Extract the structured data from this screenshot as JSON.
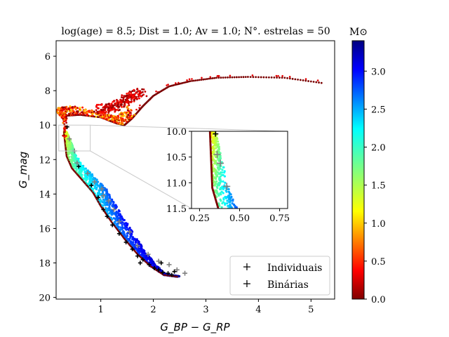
{
  "chart_data": {
    "type": "scatter",
    "title": "log(age) = 8.5; Dist = 1.0; Av = 1.0; N°. estrelas = 50",
    "xlabel": "G_BP − G_RP",
    "ylabel": "G_mag",
    "xlim": [
      0.15,
      5.45
    ],
    "ylim": [
      20.1,
      5.1
    ],
    "y_inverted": true,
    "xticks": [
      "1",
      "2",
      "3",
      "4",
      "5"
    ],
    "yticks": [
      "6",
      "8",
      "10",
      "12",
      "14",
      "16",
      "18",
      "20"
    ],
    "colorbar": {
      "label": "M⊙",
      "range": [
        0.0,
        3.4
      ],
      "ticks": [
        "0.0",
        "0.5",
        "1.0",
        "1.5",
        "2.0",
        "2.5",
        "3.0"
      ],
      "colormap": "jet"
    },
    "legend": {
      "placement": "lower-right",
      "entries": [
        {
          "label": "Individuais",
          "marker": "+",
          "color": "#000000"
        },
        {
          "label": "Binárias",
          "marker": "+",
          "color": "#808080"
        }
      ]
    },
    "isochrone_ridge": [
      {
        "x": 0.3,
        "y": 10.4
      },
      {
        "x": 0.32,
        "y": 11.0
      },
      {
        "x": 0.35,
        "y": 11.8
      },
      {
        "x": 0.45,
        "y": 12.5
      },
      {
        "x": 0.65,
        "y": 13.2
      },
      {
        "x": 0.85,
        "y": 13.9
      },
      {
        "x": 1.0,
        "y": 14.7
      },
      {
        "x": 1.2,
        "y": 15.6
      },
      {
        "x": 1.45,
        "y": 16.6
      },
      {
        "x": 1.7,
        "y": 17.5
      },
      {
        "x": 1.95,
        "y": 18.2
      },
      {
        "x": 2.2,
        "y": 18.7
      },
      {
        "x": 2.45,
        "y": 18.8
      }
    ],
    "turnoff_loop": [
      {
        "x": 0.3,
        "y": 9.7
      },
      {
        "x": 0.35,
        "y": 9.45
      },
      {
        "x": 0.6,
        "y": 9.4
      },
      {
        "x": 1.0,
        "y": 9.55
      },
      {
        "x": 1.3,
        "y": 9.9
      },
      {
        "x": 1.45,
        "y": 10.0
      },
      {
        "x": 1.6,
        "y": 9.6
      },
      {
        "x": 1.8,
        "y": 8.9
      },
      {
        "x": 2.0,
        "y": 8.3
      },
      {
        "x": 2.3,
        "y": 7.75
      },
      {
        "x": 2.7,
        "y": 7.45
      },
      {
        "x": 3.2,
        "y": 7.25
      },
      {
        "x": 3.8,
        "y": 7.2
      },
      {
        "x": 4.5,
        "y": 7.25
      },
      {
        "x": 5.2,
        "y": 7.55
      }
    ],
    "subgiant_blue_clump": [
      {
        "x": 1.0,
        "y": 9.0
      },
      {
        "x": 1.15,
        "y": 9.1
      },
      {
        "x": 1.3,
        "y": 8.8
      },
      {
        "x": 1.45,
        "y": 8.6
      },
      {
        "x": 1.6,
        "y": 8.3
      },
      {
        "x": 1.75,
        "y": 8.1
      }
    ],
    "individuais": [
      {
        "x": 0.36,
        "y": 10.1
      },
      {
        "x": 0.58,
        "y": 12.4
      },
      {
        "x": 0.82,
        "y": 13.5
      },
      {
        "x": 0.95,
        "y": 14.2
      },
      {
        "x": 1.05,
        "y": 14.9
      },
      {
        "x": 1.12,
        "y": 15.3
      },
      {
        "x": 1.22,
        "y": 15.8
      },
      {
        "x": 1.35,
        "y": 16.3
      },
      {
        "x": 1.48,
        "y": 16.8
      },
      {
        "x": 1.6,
        "y": 17.2
      },
      {
        "x": 1.7,
        "y": 17.6
      },
      {
        "x": 1.8,
        "y": 17.8
      },
      {
        "x": 1.92,
        "y": 18.1
      },
      {
        "x": 2.02,
        "y": 18.3
      },
      {
        "x": 2.1,
        "y": 18.4
      },
      {
        "x": 2.18,
        "y": 18.55
      },
      {
        "x": 2.28,
        "y": 18.6
      },
      {
        "x": 2.35,
        "y": 18.7
      },
      {
        "x": 2.15,
        "y": 18.0
      },
      {
        "x": 1.75,
        "y": 18.0
      },
      {
        "x": 2.4,
        "y": 18.5
      }
    ],
    "binarias": [
      {
        "x": 0.4,
        "y": 10.8
      },
      {
        "x": 0.75,
        "y": 12.8
      },
      {
        "x": 0.88,
        "y": 13.3
      },
      {
        "x": 1.05,
        "y": 14.1
      },
      {
        "x": 1.15,
        "y": 14.4
      },
      {
        "x": 1.25,
        "y": 14.9
      },
      {
        "x": 1.35,
        "y": 15.6
      },
      {
        "x": 1.55,
        "y": 16.2
      },
      {
        "x": 1.7,
        "y": 17.0
      },
      {
        "x": 1.9,
        "y": 17.5
      },
      {
        "x": 2.1,
        "y": 17.9
      },
      {
        "x": 2.3,
        "y": 18.1
      },
      {
        "x": 2.45,
        "y": 18.4
      },
      {
        "x": 2.6,
        "y": 18.6
      },
      {
        "x": 1.02,
        "y": 13.7
      },
      {
        "x": 0.5,
        "y": 11.5
      },
      {
        "x": 0.55,
        "y": 12.2
      }
    ],
    "inset": {
      "xlim": [
        0.2,
        0.8
      ],
      "ylim": [
        11.5,
        10.0
      ],
      "xticks": [
        "0.25",
        "0.50",
        "0.75"
      ],
      "yticks": [
        "10.0",
        "10.5",
        "11.0",
        "11.5"
      ],
      "binarias": [
        {
          "x": 0.36,
          "y": 10.45
        },
        {
          "x": 0.38,
          "y": 10.62
        },
        {
          "x": 0.42,
          "y": 11.07
        }
      ],
      "individuais": [
        {
          "x": 0.35,
          "y": 10.05
        }
      ]
    }
  }
}
